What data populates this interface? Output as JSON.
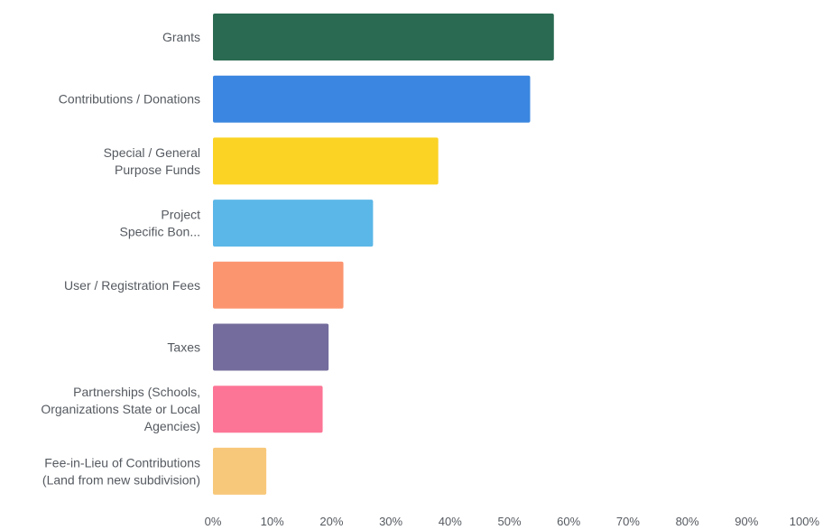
{
  "chart_data": {
    "type": "bar",
    "orientation": "horizontal",
    "categories": [
      "Grants",
      "Contributions / Donations",
      "Special / General Purpose Funds",
      "Project Specific Bon...",
      "User / Registration Fees",
      "Taxes",
      "Partnerships (Schools, Organizations State or Local Agencies)",
      "Fee-in-Lieu of Contributions (Land from new subdivision)"
    ],
    "category_lines": [
      [
        "Grants"
      ],
      [
        "Contributions / Donations"
      ],
      [
        "Special / General",
        "Purpose Funds"
      ],
      [
        "Project",
        "Specific Bon..."
      ],
      [
        "User / Registration Fees"
      ],
      [
        "Taxes"
      ],
      [
        "Partnerships (Schools,",
        "Organizations State or Local",
        "Agencies)"
      ],
      [
        "Fee-in-Lieu of Contributions",
        "(Land from new subdivision)"
      ]
    ],
    "values": [
      57.5,
      53.5,
      38,
      27,
      22,
      19.5,
      18.5,
      9
    ],
    "bar_colors": [
      "#2a6a52",
      "#3a86e0",
      "#fbd324",
      "#5bb7e8",
      "#fb9570",
      "#736c9c",
      "#fc7596",
      "#f8c87a"
    ],
    "xlim": [
      0,
      100
    ],
    "xticks": [
      "0%",
      "10%",
      "20%",
      "30%",
      "40%",
      "50%",
      "60%",
      "70%",
      "80%",
      "90%",
      "100%"
    ],
    "grid": false,
    "xlabel": "",
    "ylabel": "",
    "title": ""
  }
}
